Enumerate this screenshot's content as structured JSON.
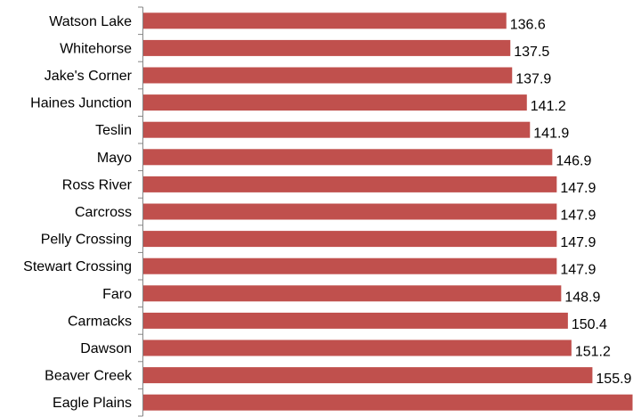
{
  "chart_data": {
    "type": "bar",
    "orientation": "horizontal",
    "title": "",
    "xlabel": "",
    "ylabel": "",
    "categories": [
      "Watson Lake",
      "Whitehorse",
      "Jake's Corner",
      "Haines Junction",
      "Teslin",
      "Mayo",
      "Ross River",
      "Carcross",
      "Pelly Crossing",
      "Stewart Crossing",
      "Faro",
      "Carmacks",
      "Dawson",
      "Beaver Creek",
      "Eagle Plains"
    ],
    "values": [
      136.6,
      137.5,
      137.9,
      141.2,
      141.9,
      146.9,
      147.9,
      147.9,
      147.9,
      147.9,
      148.9,
      150.4,
      151.2,
      155.9,
      164.9
    ],
    "value_labels": [
      "136.6",
      "137.5",
      "137.9",
      "141.2",
      "141.9",
      "146.9",
      "147.9",
      "147.9",
      "147.9",
      "147.9",
      "148.9",
      "150.4",
      "151.2",
      "155.9",
      ""
    ],
    "xlim": [
      55,
      165
    ],
    "bar_color": "#c0504d",
    "axis_color": "#868686",
    "grid": false,
    "legend": "none"
  }
}
